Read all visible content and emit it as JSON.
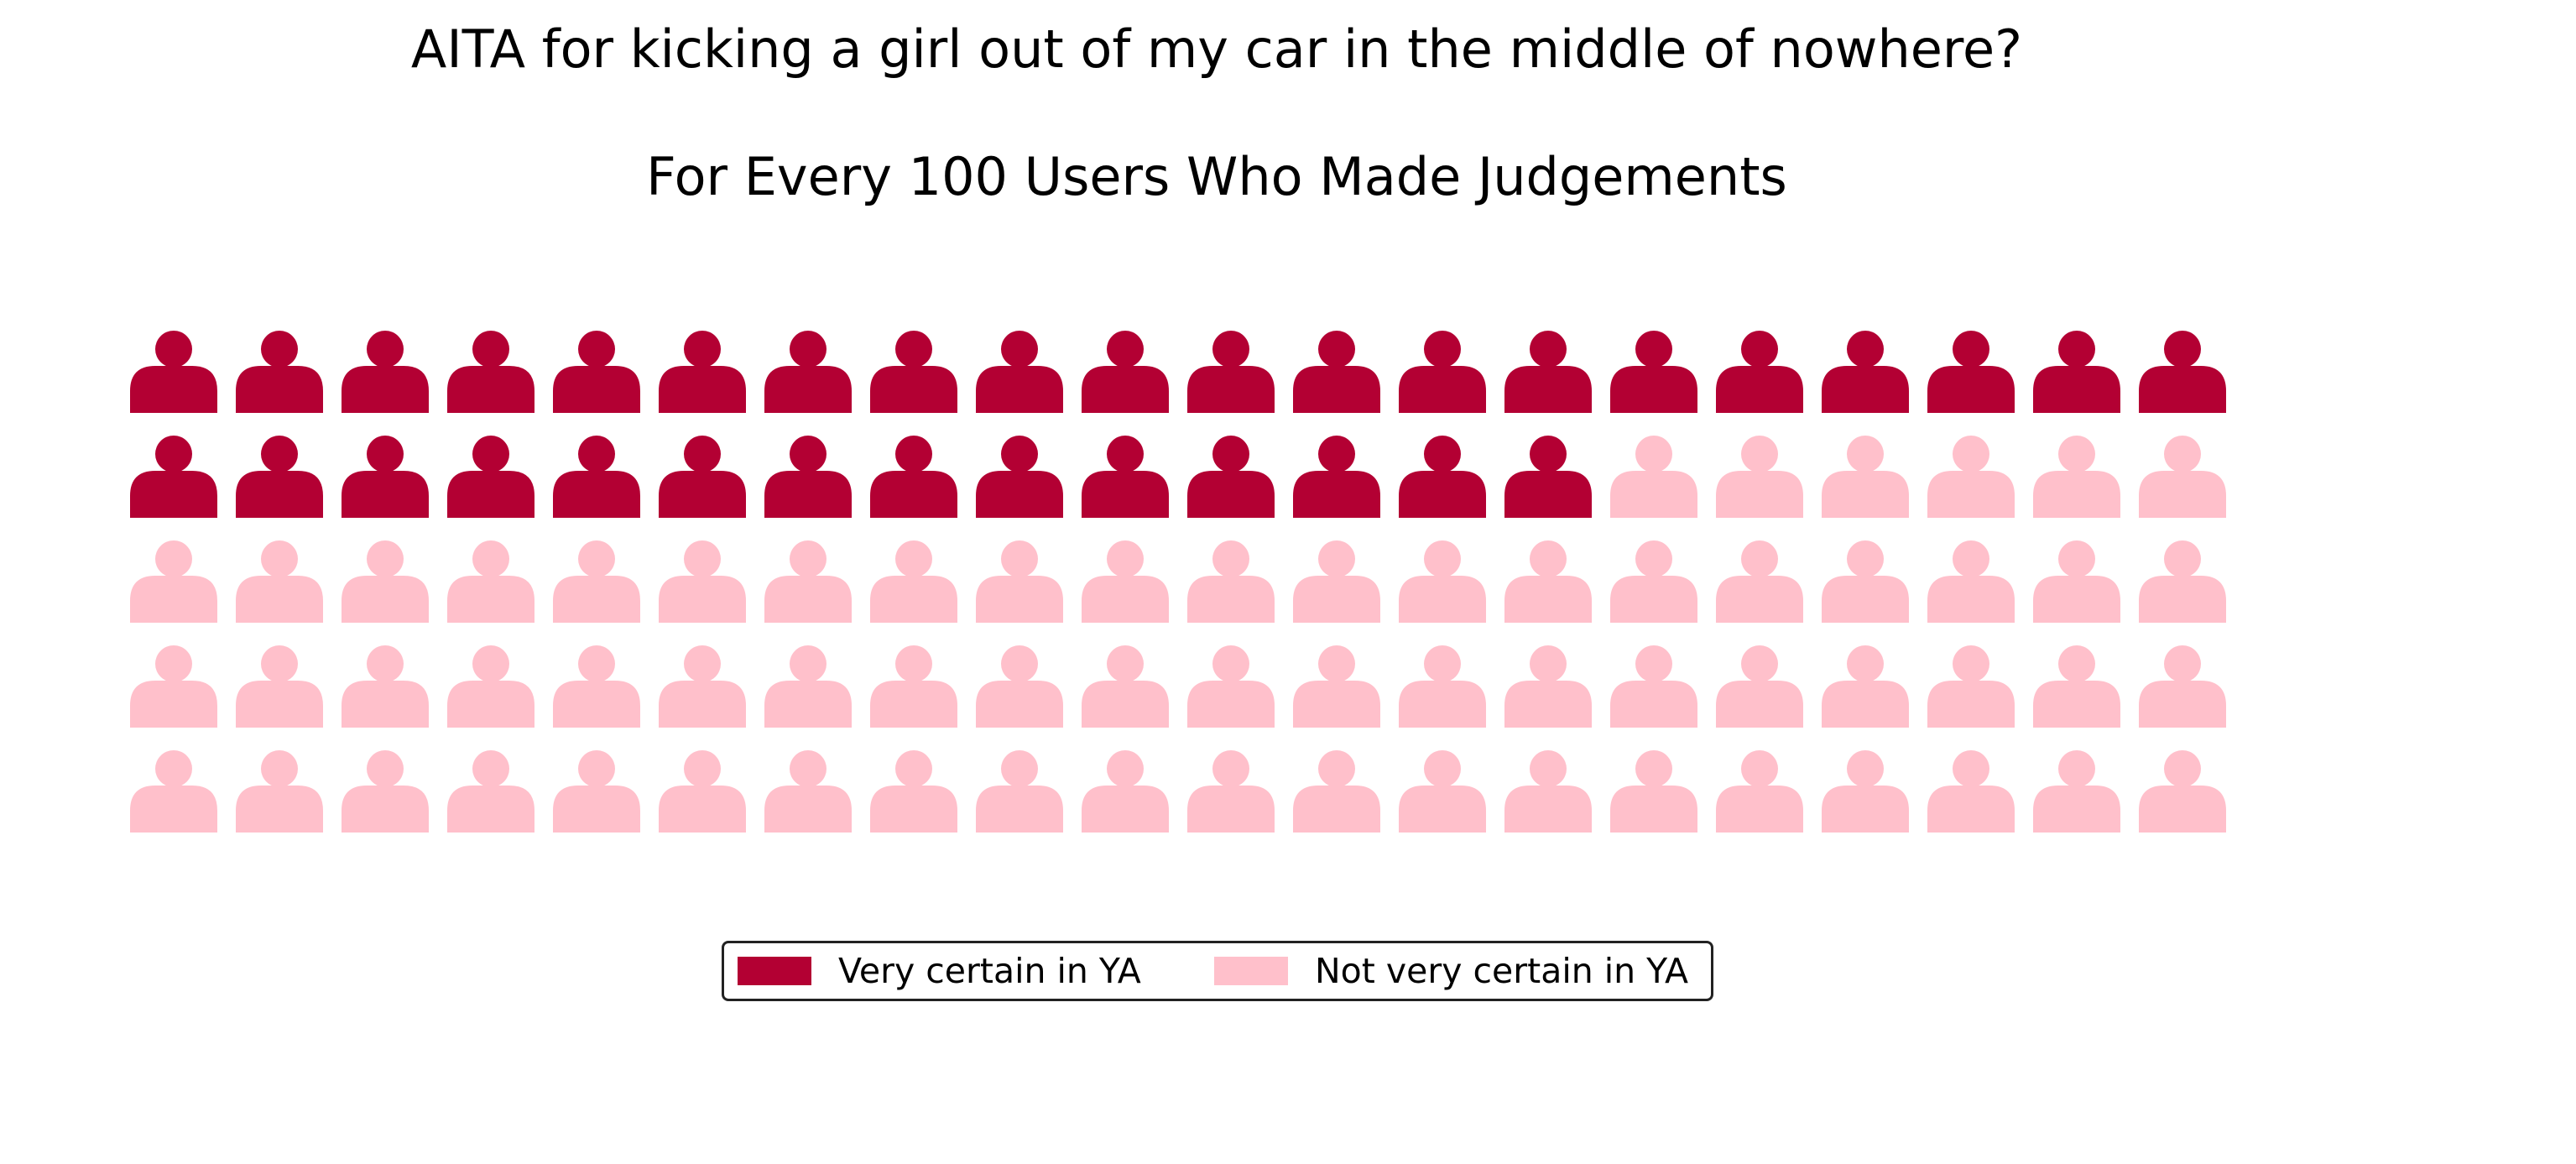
{
  "chart_data": {
    "type": "waffle",
    "title": "AITA for kicking a girl out of my car in the middle of nowhere?",
    "subtitle": "For Every 100 Users Who Made Judgements",
    "icon": "person-icon",
    "rows": 5,
    "columns": 20,
    "total": 100,
    "fill_order": "row-major",
    "series": [
      {
        "name": "Very certain in YA",
        "value": 34,
        "color": "#b30033"
      },
      {
        "name": "Not very certain in YA",
        "value": 66,
        "color": "#ffc0cb"
      }
    ],
    "legend": {
      "position": "bottom-center",
      "labels": [
        "Very certain in YA",
        "Not very certain in YA"
      ]
    }
  }
}
